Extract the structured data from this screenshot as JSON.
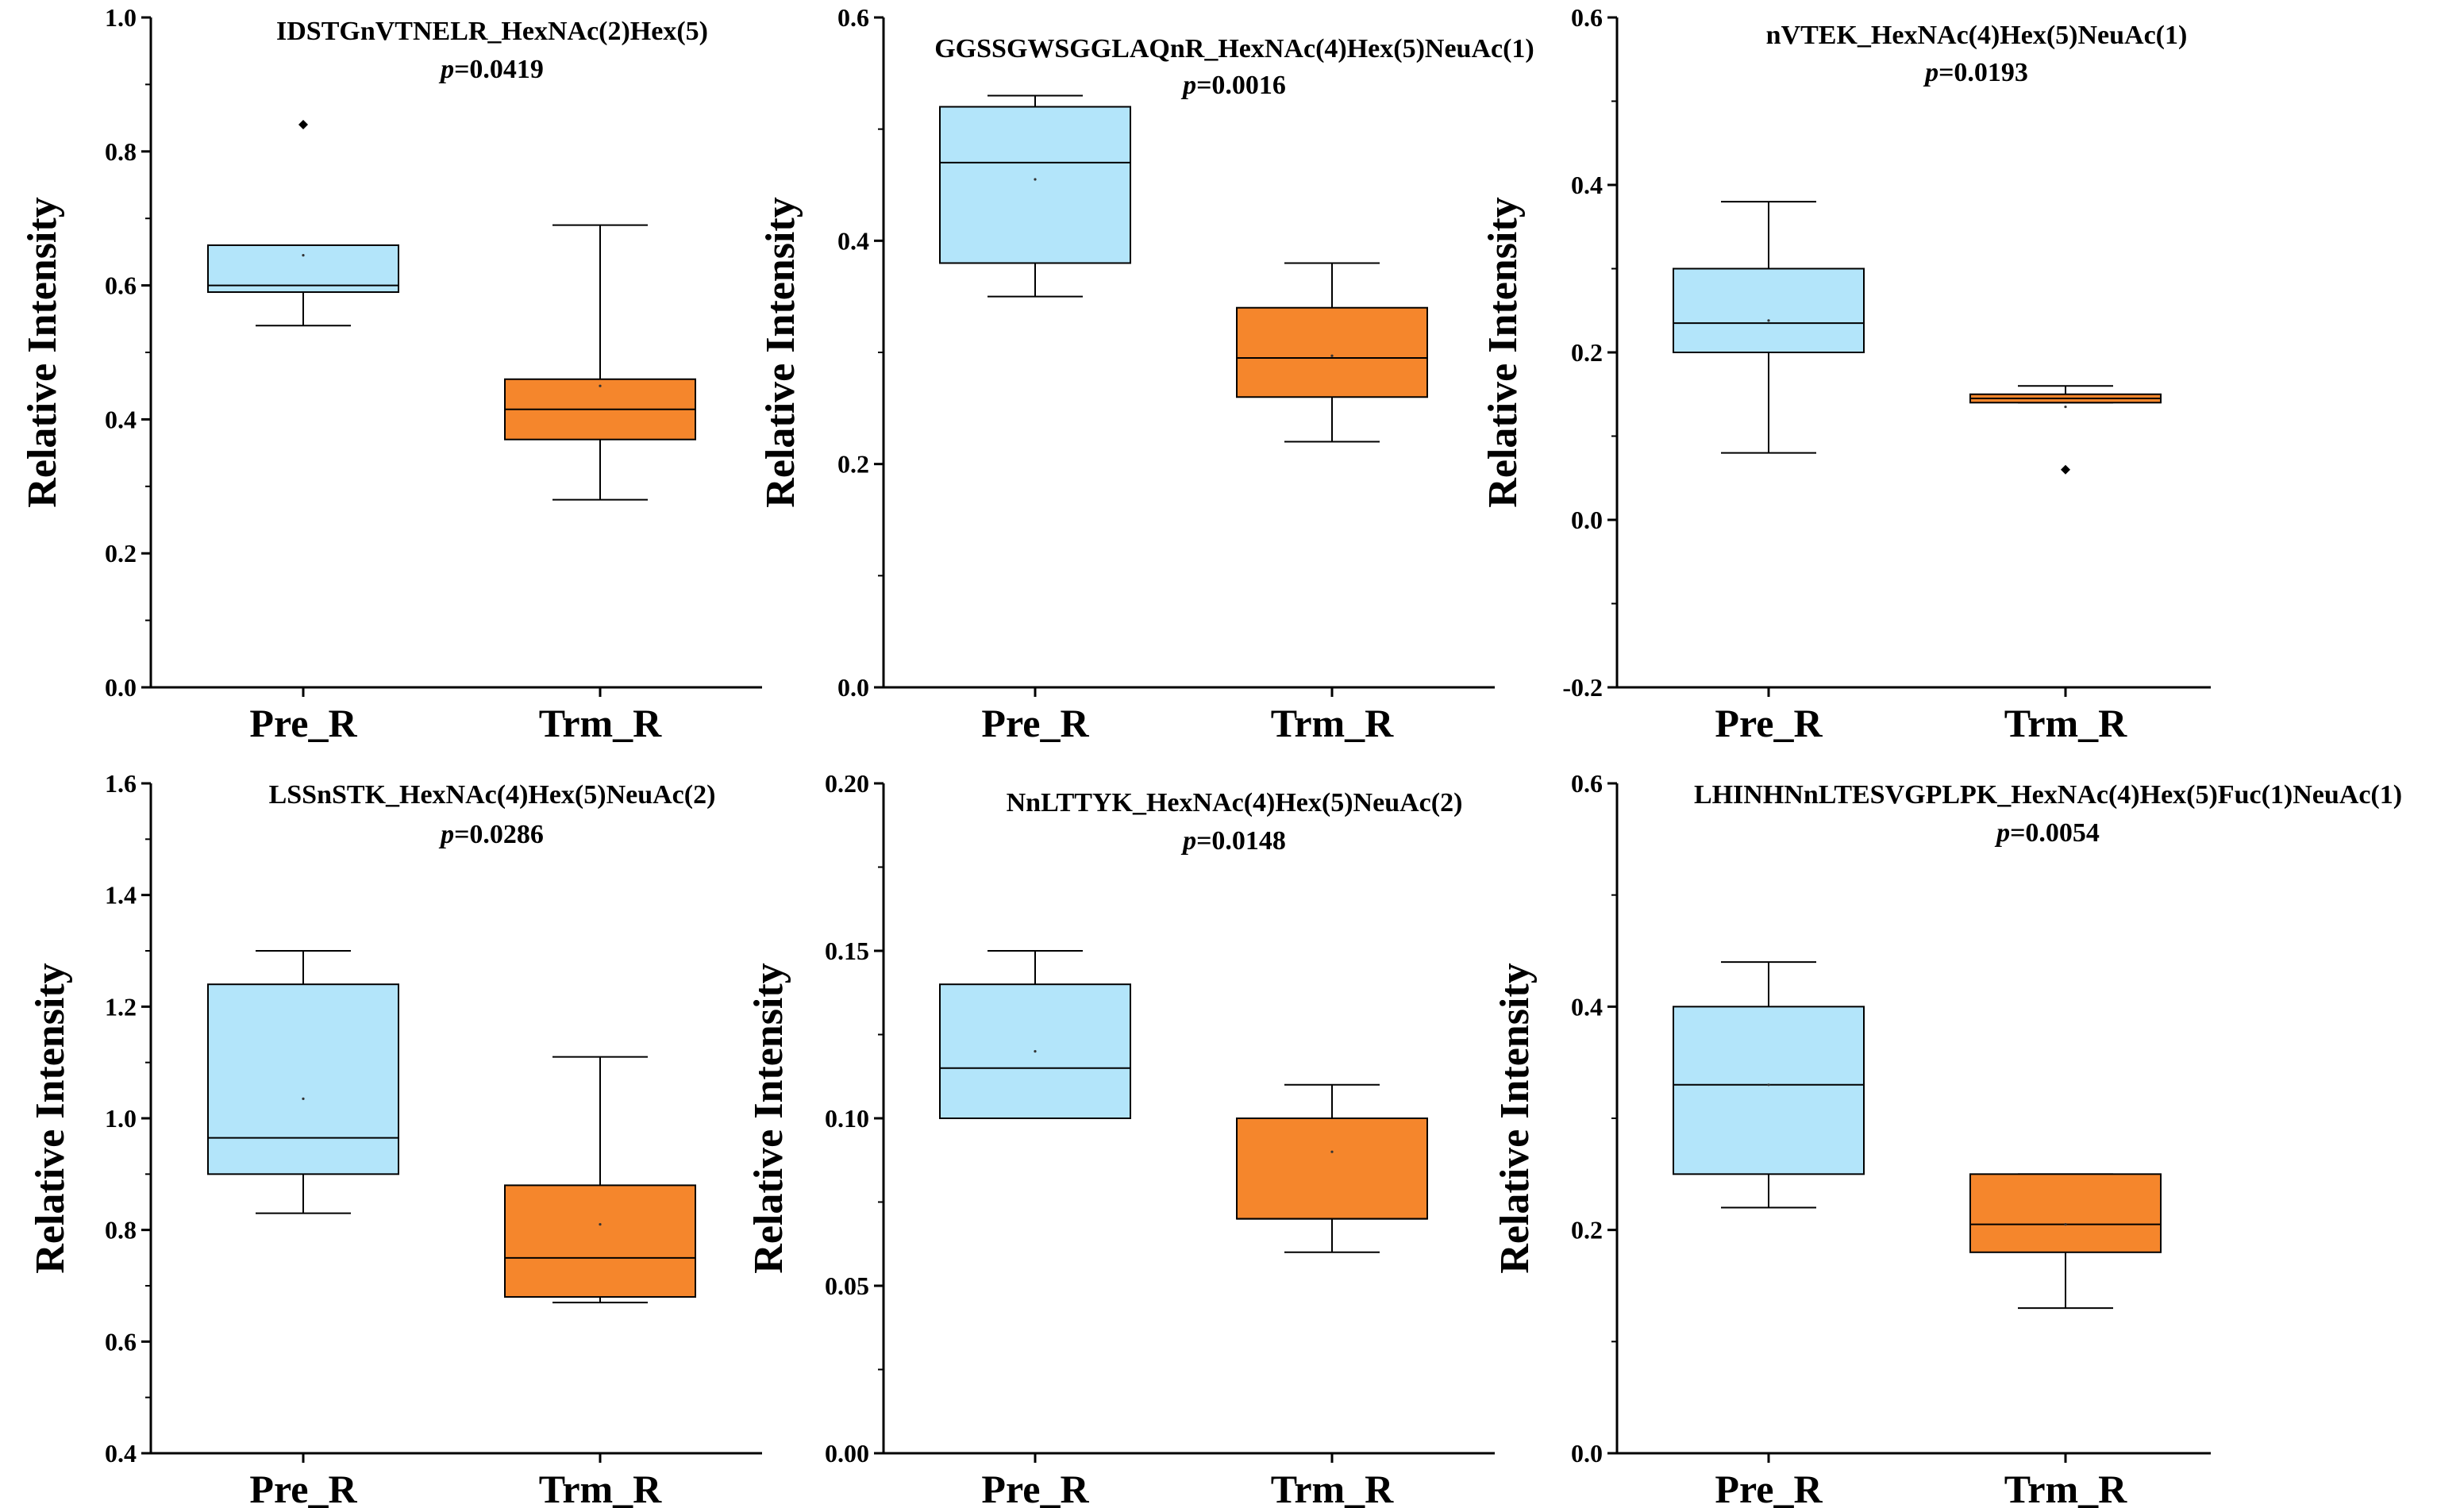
{
  "chart_data": [
    {
      "type": "box",
      "title": "IDSTGnVTNELR_HexNAc(2)Hex(5)",
      "p_prefix": "p",
      "p_value": "=0.0419",
      "ylabel": "Relative Intensity",
      "ylim": [
        0.0,
        1.0
      ],
      "yticks": [
        0.0,
        0.2,
        0.4,
        0.6,
        0.8,
        1.0
      ],
      "decimals": 1,
      "categories": [
        "Pre_R",
        "Trm_R"
      ],
      "colors": [
        "#B3E5FA",
        "#F5862C"
      ],
      "boxes": [
        {
          "group": "Pre_R",
          "whisker_low": 0.54,
          "q1": 0.59,
          "median": 0.6,
          "q3": 0.66,
          "whisker_high": 0.66,
          "mean": 0.645,
          "outliers": [
            0.84
          ]
        },
        {
          "group": "Trm_R",
          "whisker_low": 0.28,
          "q1": 0.37,
          "median": 0.415,
          "q3": 0.46,
          "whisker_high": 0.69,
          "mean": 0.45,
          "outliers": []
        }
      ]
    },
    {
      "type": "box",
      "title": "GGSSGWSGGLAQnR_HexNAc(4)Hex(5)NeuAc(1)",
      "p_prefix": "p",
      "p_value": "=0.0016",
      "ylabel": "Relative Intensity",
      "ylim": [
        0.0,
        0.6
      ],
      "yticks": [
        0.0,
        0.2,
        0.4,
        0.6
      ],
      "decimals": 1,
      "categories": [
        "Pre_R",
        "Trm_R"
      ],
      "colors": [
        "#B3E5FA",
        "#F5862C"
      ],
      "boxes": [
        {
          "group": "Pre_R",
          "whisker_low": 0.35,
          "q1": 0.38,
          "median": 0.47,
          "q3": 0.52,
          "whisker_high": 0.53,
          "mean": 0.455,
          "outliers": []
        },
        {
          "group": "Trm_R",
          "whisker_low": 0.22,
          "q1": 0.26,
          "median": 0.295,
          "q3": 0.34,
          "whisker_high": 0.38,
          "mean": 0.297,
          "outliers": []
        }
      ]
    },
    {
      "type": "box",
      "title": "nVTEK_HexNAc(4)Hex(5)NeuAc(1)",
      "p_prefix": "p",
      "p_value": "=0.0193",
      "ylabel": "Relative Intensity",
      "ylim": [
        -0.2,
        0.6
      ],
      "yticks": [
        -0.2,
        0.0,
        0.2,
        0.4,
        0.6
      ],
      "decimals": 1,
      "categories": [
        "Pre_R",
        "Trm_R"
      ],
      "colors": [
        "#B3E5FA",
        "#F5862C"
      ],
      "boxes": [
        {
          "group": "Pre_R",
          "whisker_low": 0.08,
          "q1": 0.2,
          "median": 0.235,
          "q3": 0.3,
          "whisker_high": 0.38,
          "mean": 0.238,
          "outliers": []
        },
        {
          "group": "Trm_R",
          "whisker_low": 0.14,
          "q1": 0.14,
          "median": 0.145,
          "q3": 0.15,
          "whisker_high": 0.16,
          "mean": 0.135,
          "outliers": [
            0.06
          ]
        }
      ]
    },
    {
      "type": "box",
      "title": "LSSnSTK_HexNAc(4)Hex(5)NeuAc(2)",
      "p_prefix": "p",
      "p_value": "=0.0286",
      "ylabel": "Relative Intensity",
      "ylim": [
        0.4,
        1.6
      ],
      "yticks": [
        0.4,
        0.6,
        0.8,
        1.0,
        1.2,
        1.4,
        1.6
      ],
      "decimals": 1,
      "categories": [
        "Pre_R",
        "Trm_R"
      ],
      "colors": [
        "#B3E5FA",
        "#F5862C"
      ],
      "boxes": [
        {
          "group": "Pre_R",
          "whisker_low": 0.83,
          "q1": 0.9,
          "median": 0.965,
          "q3": 1.24,
          "whisker_high": 1.3,
          "mean": 1.035,
          "outliers": []
        },
        {
          "group": "Trm_R",
          "whisker_low": 0.67,
          "q1": 0.68,
          "median": 0.75,
          "q3": 0.88,
          "whisker_high": 1.11,
          "mean": 0.81,
          "outliers": []
        }
      ]
    },
    {
      "type": "box",
      "title": "NnLTTYK_HexNAc(4)Hex(5)NeuAc(2)",
      "p_prefix": "p",
      "p_value": "=0.0148",
      "ylabel": "Relative Intensity",
      "ylim": [
        0.0,
        0.2
      ],
      "yticks": [
        0.0,
        0.05,
        0.1,
        0.15,
        0.2
      ],
      "decimals": 2,
      "categories": [
        "Pre_R",
        "Trm_R"
      ],
      "colors": [
        "#B3E5FA",
        "#F5862C"
      ],
      "boxes": [
        {
          "group": "Pre_R",
          "whisker_low": 0.1,
          "q1": 0.1,
          "median": 0.115,
          "q3": 0.14,
          "whisker_high": 0.15,
          "mean": 0.12,
          "outliers": []
        },
        {
          "group": "Trm_R",
          "whisker_low": 0.06,
          "q1": 0.07,
          "median": 0.07,
          "q3": 0.1,
          "whisker_high": 0.11,
          "mean": 0.09,
          "outliers": []
        }
      ]
    },
    {
      "type": "box",
      "title": "LHINHNnLTESVGPLPK_HexNAc(4)Hex(5)Fuc(1)NeuAc(1)",
      "p_prefix": "p",
      "p_value": "=0.0054",
      "ylabel": "Relative Intensity",
      "ylim": [
        0.0,
        0.6
      ],
      "yticks": [
        0.0,
        0.2,
        0.4,
        0.6
      ],
      "decimals": 1,
      "categories": [
        "Pre_R",
        "Trm_R"
      ],
      "colors": [
        "#B3E5FA",
        "#F5862C"
      ],
      "boxes": [
        {
          "group": "Pre_R",
          "whisker_low": 0.22,
          "q1": 0.25,
          "median": 0.33,
          "q3": 0.4,
          "whisker_high": 0.44,
          "mean": 0.33,
          "outliers": []
        },
        {
          "group": "Trm_R",
          "whisker_low": 0.13,
          "q1": 0.18,
          "median": 0.205,
          "q3": 0.25,
          "whisker_high": 0.25,
          "mean": 0.205,
          "outliers": []
        }
      ]
    }
  ]
}
